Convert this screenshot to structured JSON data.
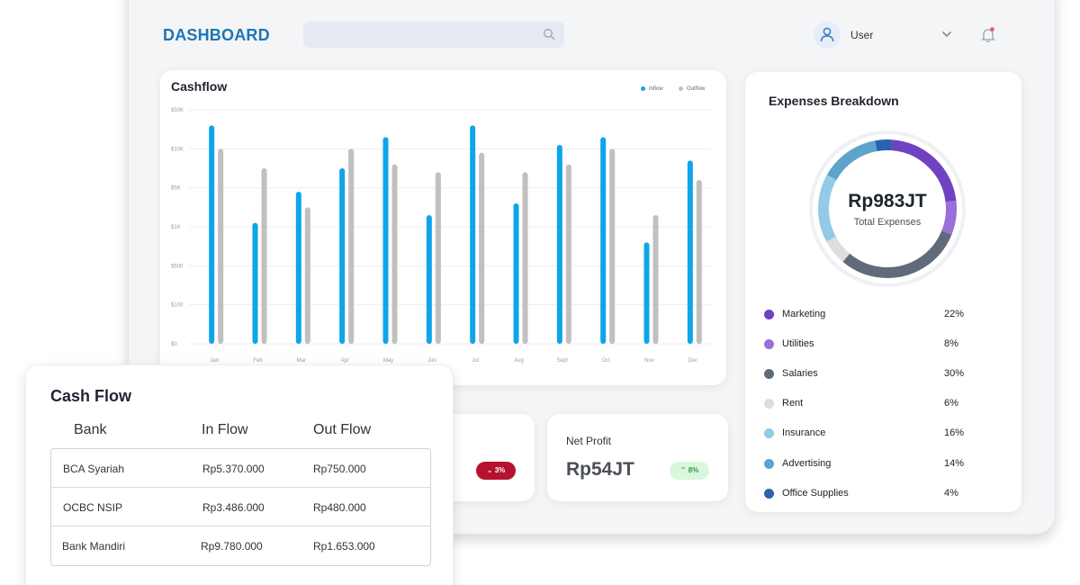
{
  "header": {
    "logo": "DASHBOARD",
    "search": {
      "placeholder": "",
      "icon": "search-icon"
    },
    "user": {
      "name": "User",
      "avatar_icon": "user-icon",
      "chevron_icon": "chevron-down-icon",
      "notification_icon": "bell-icon",
      "notification_dot_color": "#ef5350"
    }
  },
  "cashflow": {
    "title": "Cashflow",
    "legend": [
      {
        "label": "Inflow",
        "color": "#0ea5e9"
      },
      {
        "label": "Outflow",
        "color": "#c0c0c0"
      }
    ]
  },
  "chart_data": {
    "type": "bar",
    "title": "Cashflow",
    "xlabel": "",
    "ylabel": "",
    "y_ticks": [
      "$0",
      "$100",
      "$500",
      "$1K",
      "$5K",
      "$10K",
      "$50K"
    ],
    "categories": [
      "Jan",
      "Feb",
      "Mar",
      "Apr",
      "May",
      "Jun",
      "Jul",
      "Aug",
      "Sept",
      "Oct",
      "Nov",
      "Dec"
    ],
    "series": [
      {
        "name": "Inflow",
        "color": "#0ea5e9",
        "values": [
          56,
          31,
          39,
          45,
          53,
          33,
          56,
          36,
          51,
          53,
          26,
          47
        ]
      },
      {
        "name": "Outflow",
        "color": "#c0c0c0",
        "values": [
          50,
          45,
          35,
          50,
          46,
          44,
          49,
          44,
          46,
          50,
          33,
          42
        ]
      }
    ],
    "grid": true,
    "legend_position": "top-right"
  },
  "expenses": {
    "title": "Expenses Breakdown",
    "total_value": "Rp983JT",
    "total_label": "Total Expenses",
    "items": [
      {
        "label": "Marketing",
        "percent": "22%",
        "share": 22,
        "color": "#6f42c1"
      },
      {
        "label": "Utilities",
        "percent": "8%",
        "share": 8,
        "color": "#9b6fd8"
      },
      {
        "label": "Salaries",
        "percent": "30%",
        "share": 30,
        "color": "#5f6b78"
      },
      {
        "label": "Rent",
        "percent": "6%",
        "share": 6,
        "color": "#dddddd"
      },
      {
        "label": "Insurance",
        "percent": "16%",
        "share": 16,
        "color": "#93cae8"
      },
      {
        "label": "Advertising",
        "percent": "14%",
        "share": 14,
        "color": "#5fa3cd"
      },
      {
        "label": "Office Supplies",
        "percent": "4%",
        "share": 4,
        "color": "#2a62b0"
      }
    ]
  },
  "summary": {
    "hidden_card": {
      "badge_text": "3%",
      "badge_direction": "down",
      "badge_color": "#b5122f"
    },
    "net_profit": {
      "label": "Net Profit",
      "value": "Rp54JT",
      "badge_text": "8%",
      "badge_direction": "up",
      "badge_color": "#d9f7dc"
    }
  },
  "cash_flow_table": {
    "title": "Cash Flow",
    "columns": [
      "Bank",
      "In Flow",
      "Out Flow"
    ],
    "rows": [
      [
        "BCA Syariah",
        "Rp5.370.000",
        "Rp750.000"
      ],
      [
        "OCBC NSIP",
        "Rp3.486.000",
        "Rp480.000"
      ],
      [
        "Bank Mandiri",
        "Rp9.780.000",
        "Rp1.653.000"
      ]
    ]
  }
}
